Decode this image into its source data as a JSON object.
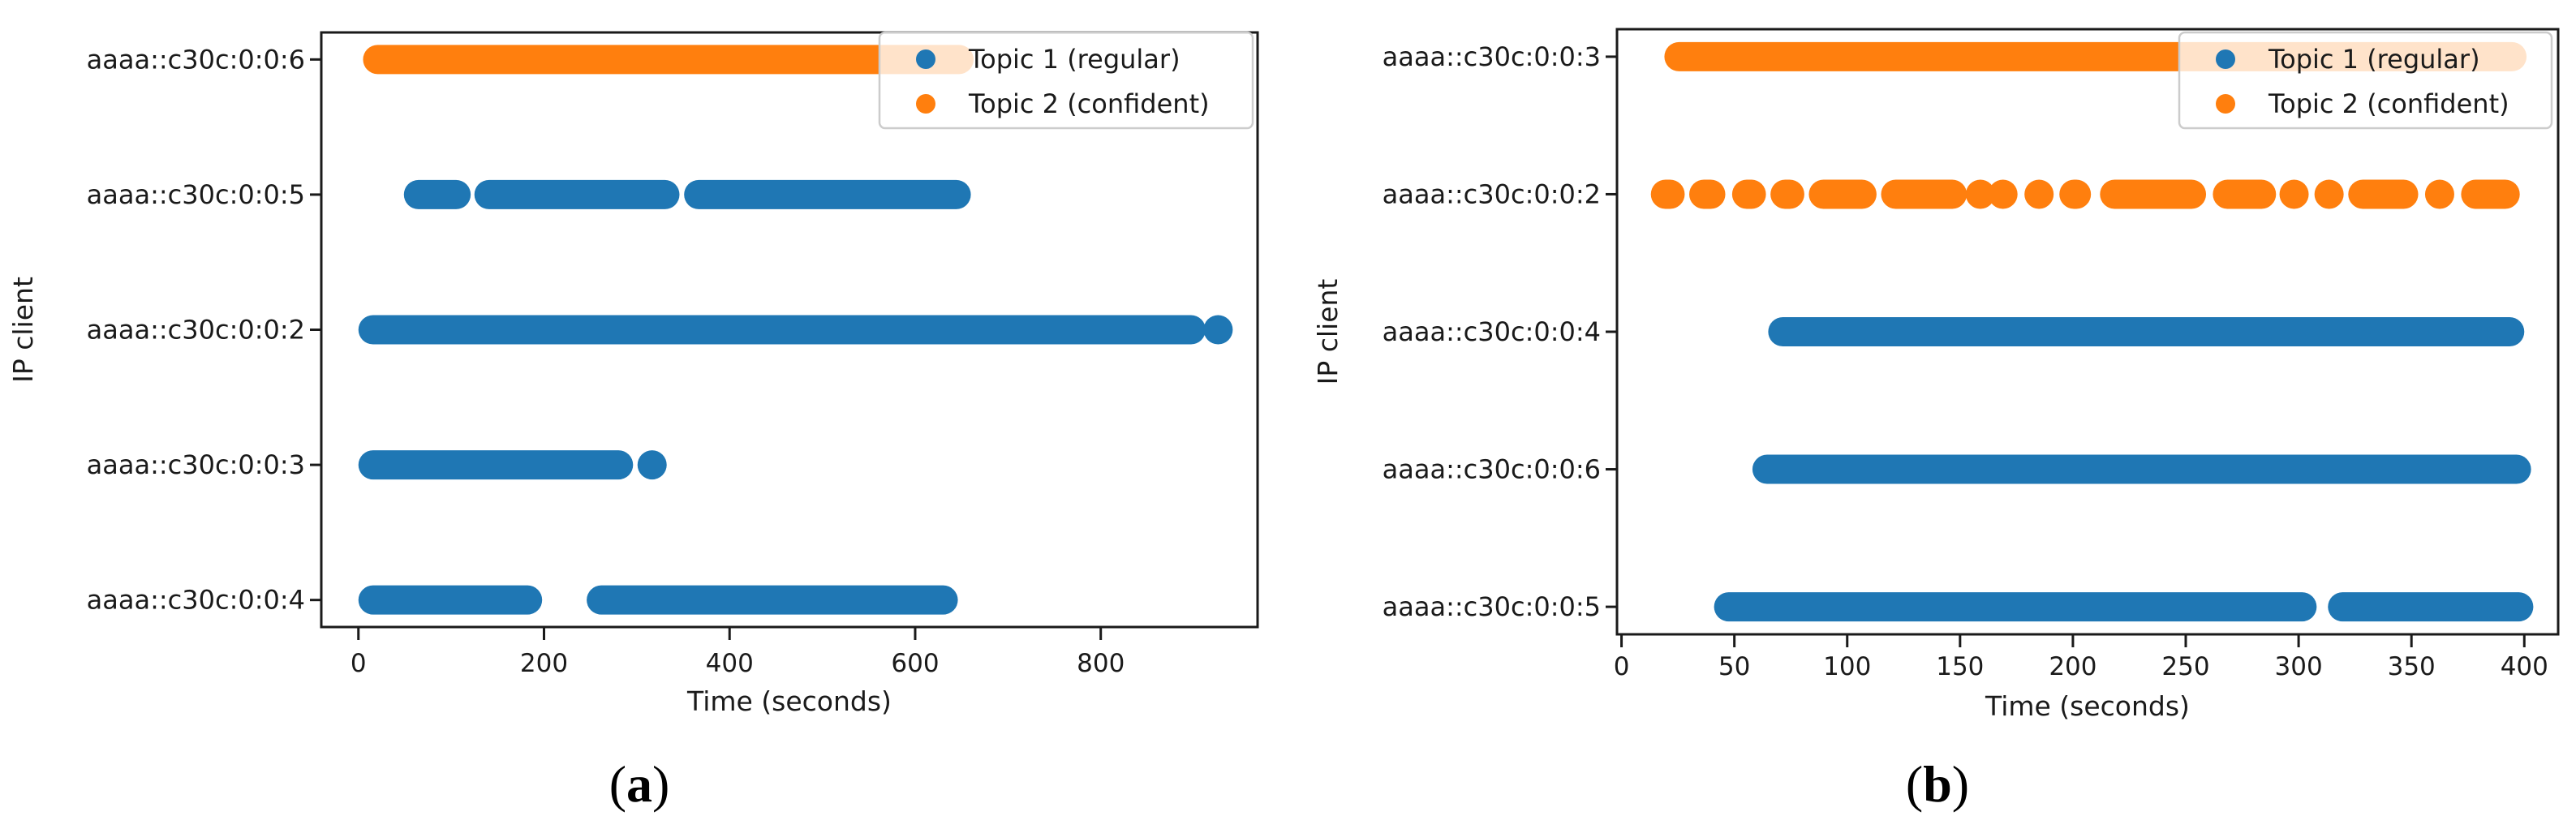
{
  "figure": {
    "background": "#ffffff",
    "text_color": "#1a1a1a",
    "spine_color": "#1a1a1a",
    "legend_border_color": "#cccccc",
    "series_colors": {
      "topic1": "#1f77b4",
      "topic2": "#ff7f0e"
    }
  },
  "chart_data": [
    {
      "type": "scatter",
      "panel": "a",
      "caption": {
        "open": "(",
        "letter": "a",
        "close": ")"
      },
      "xlabel": "Time (seconds)",
      "ylabel": "IP client",
      "xlim": [
        -40,
        969
      ],
      "ylim": [
        -0.2,
        4.2
      ],
      "grid": false,
      "legend_position": "upper right",
      "xticks": [
        0,
        200,
        400,
        600,
        800
      ],
      "legend": [
        {
          "label": "Topic 1 (regular)",
          "color": "#1f77b4"
        },
        {
          "label": "Topic 2 (confident)",
          "color": "#ff7f0e"
        }
      ],
      "rows": [
        {
          "label": "aaaa::c30c:0:0:6",
          "series": "Topic 2 (confident)",
          "color": "#ff7f0e",
          "segments": [
            [
              5,
              663
            ]
          ]
        },
        {
          "label": "aaaa::c30c:0:0:5",
          "series": "Topic 1 (regular)",
          "color": "#1f77b4",
          "segments": [
            [
              49,
              121
            ],
            [
              125,
              346
            ],
            [
              351,
              660
            ]
          ]
        },
        {
          "label": "aaaa::c30c:0:0:2",
          "series": "Topic 1 (regular)",
          "color": "#1f77b4",
          "segments": [
            [
              0,
              913
            ],
            [
              919,
              934
            ]
          ]
        },
        {
          "label": "aaaa::c30c:0:0:3",
          "series": "Topic 1 (regular)",
          "color": "#1f77b4",
          "segments": [
            [
              0,
              296
            ],
            [
              309,
              324
            ]
          ]
        },
        {
          "label": "aaaa::c30c:0:0:4",
          "series": "Topic 1 (regular)",
          "color": "#1f77b4",
          "segments": [
            [
              0,
              198
            ],
            [
              246,
              646
            ]
          ]
        }
      ]
    },
    {
      "type": "scatter",
      "panel": "b",
      "caption": {
        "open": "(",
        "letter": "b",
        "close": ")"
      },
      "xlabel": "Time (seconds)",
      "ylabel": "IP client",
      "xlim": [
        -2,
        415
      ],
      "ylim": [
        -0.2,
        4.2
      ],
      "grid": false,
      "legend_position": "upper right",
      "xticks": [
        0,
        50,
        100,
        150,
        200,
        250,
        300,
        350,
        400
      ],
      "legend": [
        {
          "label": "Topic 1 (regular)",
          "color": "#1f77b4"
        },
        {
          "label": "Topic 2 (confident)",
          "color": "#ff7f0e"
        }
      ],
      "rows": [
        {
          "label": "aaaa::c30c:0:0:3",
          "series": "Topic 2 (confident)",
          "color": "#ff7f0e",
          "segments": [
            [
              19,
              401
            ]
          ]
        },
        {
          "label": "aaaa::c30c:0:0:2",
          "series": "Topic 2 (confident)",
          "color": "#ff7f0e",
          "segments": [
            [
              13,
              28
            ],
            [
              30,
              46
            ],
            [
              49,
              64
            ],
            [
              66,
              81
            ],
            [
              83,
              113
            ],
            [
              115,
              153
            ],
            [
              156,
              162
            ],
            [
              165,
              173
            ],
            [
              181,
              189
            ],
            [
              194,
              208
            ],
            [
              212,
              259
            ],
            [
              262,
              290
            ],
            [
              294,
              302
            ],
            [
              309,
              318
            ],
            [
              322,
              353
            ],
            [
              357,
              368
            ],
            [
              372,
              398
            ]
          ]
        },
        {
          "label": "aaaa::c30c:0:0:4",
          "series": "Topic 1 (regular)",
          "color": "#1f77b4",
          "segments": [
            [
              65,
              400
            ]
          ]
        },
        {
          "label": "aaaa::c30c:0:0:6",
          "series": "Topic 1 (regular)",
          "color": "#1f77b4",
          "segments": [
            [
              58,
              403
            ]
          ]
        },
        {
          "label": "aaaa::c30c:0:0:5",
          "series": "Topic 1 (regular)",
          "color": "#1f77b4",
          "segments": [
            [
              41,
              308
            ],
            [
              313,
              404
            ]
          ]
        }
      ]
    }
  ]
}
